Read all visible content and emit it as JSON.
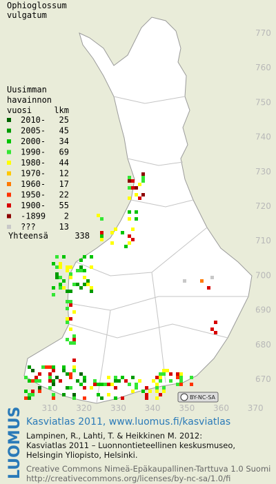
{
  "title": [
    "Ophioglossum",
    "vulgatum"
  ],
  "legend": {
    "header": [
      "Uusimman",
      "havainnon"
    ],
    "column_year": "vuosi",
    "column_count": "lkm",
    "entries": [
      {
        "label": "2010-",
        "count": 25,
        "color": "#006400"
      },
      {
        "label": "2005-",
        "count": 45,
        "color": "#009a00"
      },
      {
        "label": "2000-",
        "count": 34,
        "color": "#00c400"
      },
      {
        "label": "1990-",
        "count": 69,
        "color": "#33e633"
      },
      {
        "label": "1980-",
        "count": 44,
        "color": "#ffff00"
      },
      {
        "label": "1970-",
        "count": 12,
        "color": "#ffc800"
      },
      {
        "label": "1960-",
        "count": 17,
        "color": "#ff7a00"
      },
      {
        "label": "1950-",
        "count": 22,
        "color": "#ff3200"
      },
      {
        "label": "1900-",
        "count": 55,
        "color": "#d80000"
      },
      {
        "label": "-1899",
        "count": 2,
        "color": "#8c0000"
      },
      {
        "label": "???",
        "count": 13,
        "color": "#c8c8c8"
      }
    ],
    "total_label": "Yhteensä",
    "total": 338
  },
  "y_labels": [
    770,
    760,
    750,
    740,
    730,
    720,
    710,
    700,
    690,
    680,
    670
  ],
  "x_labels": [
    310,
    320,
    330,
    340,
    350,
    360,
    370
  ],
  "cc_badge": "BY-NC-SA",
  "footer": {
    "brand": "LUOMUS",
    "headline": "Kasviatlas 2011, www.luomus.fi/kasviatlas",
    "citation": [
      "Lampinen, R., Lahti, T. & Heikkinen M. 2012:",
      "Kasviatlas 2011 – Luonnontieteellinen keskusmuseo,",
      "Helsingin Yliopisto, Helsinki."
    ],
    "license": [
      "Creative Commons Nimeä-Epäkaupallinen-Tarttuva 1.0 Suomi",
      "http://creativecommons.org/licenses/by-nc-sa/1.0/fi"
    ]
  }
}
